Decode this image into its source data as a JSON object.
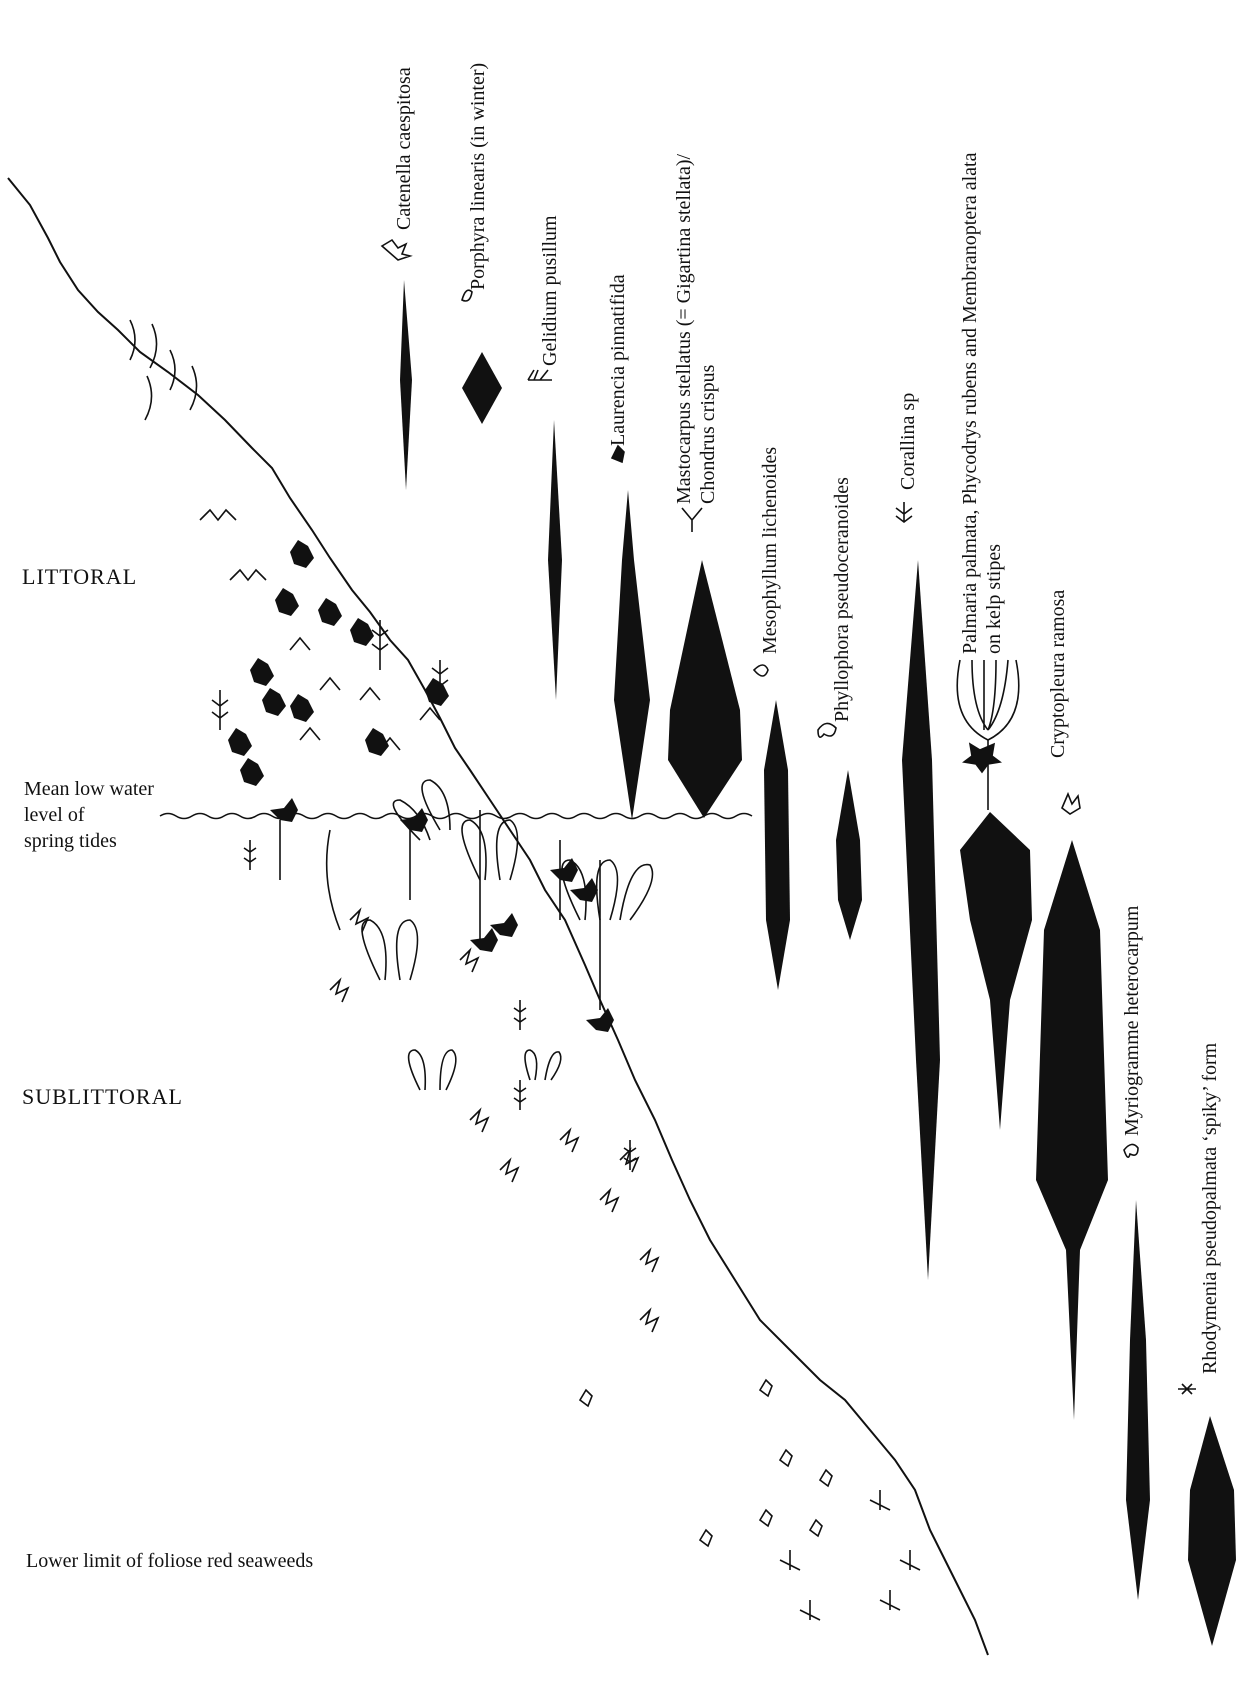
{
  "zones": {
    "littoral": "LITTORAL",
    "sublittoral": "SUBLITTORAL"
  },
  "levels": {
    "mean_low_water": [
      "Mean low water",
      "level of",
      "spring tides"
    ],
    "lower_limit": "Lower limit of foliose red seaweeds"
  },
  "species": [
    {
      "lines": [
        "Catenella caespitosa"
      ]
    },
    {
      "lines": [
        "Porphyra linearis (in winter)"
      ]
    },
    {
      "lines": [
        "Gelidium pusillum"
      ]
    },
    {
      "lines": [
        "Laurencia pinnatifida"
      ]
    },
    {
      "lines": [
        "Mastocarpus stellatus (= Gigartina stellata)/",
        "Chondrus crispus"
      ]
    },
    {
      "lines": [
        "Mesophyllum lichenoides"
      ]
    },
    {
      "lines": [
        "Phyllophora pseudoceranoides"
      ]
    },
    {
      "lines": [
        "Corallina sp"
      ]
    },
    {
      "lines": [
        "Palmaria palmata, Phycodrys rubens and Membranoptera alata",
        "on kelp stipes"
      ]
    },
    {
      "lines": [
        "Cryptopleura ramosa"
      ]
    },
    {
      "lines": [
        "Myriogramme heterocarpum"
      ]
    },
    {
      "lines": [
        "Rhodymenia pseudopalmata ‘spiky’ form"
      ]
    }
  ],
  "colors": {
    "ink": "#111111",
    "background": "#ffffff"
  }
}
